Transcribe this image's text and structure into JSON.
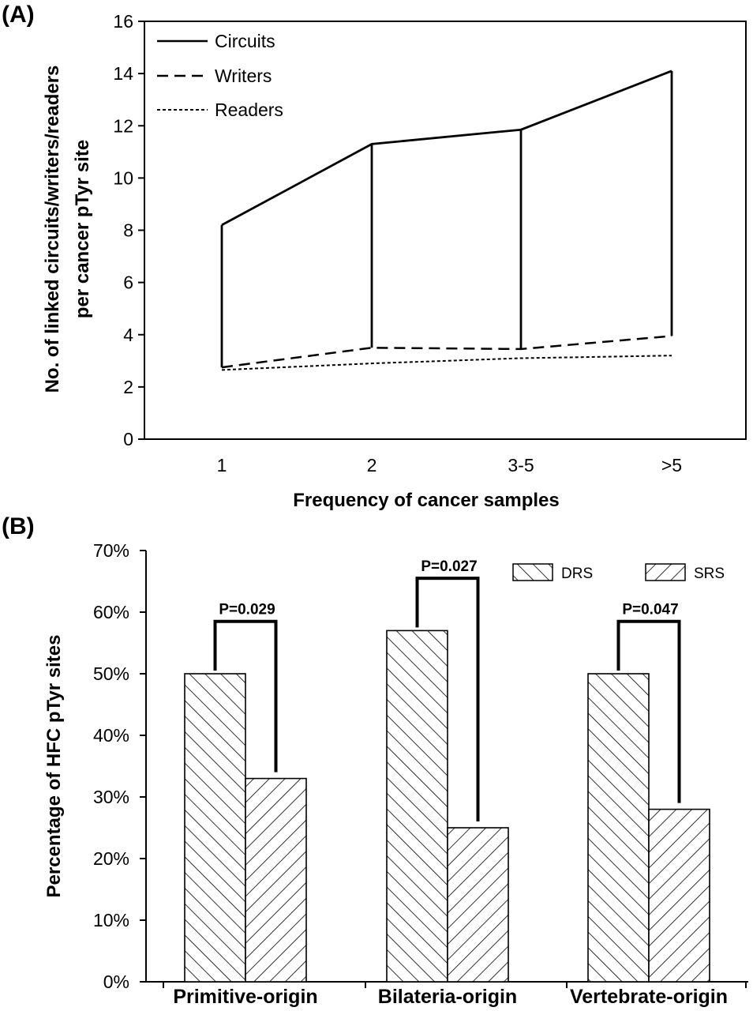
{
  "panel_a": {
    "label": "(A)",
    "legend": [
      "Circuits",
      "Writers",
      "Readers"
    ]
  },
  "panel_b": {
    "label": "(B)",
    "legend": [
      "DRS",
      "SRS"
    ],
    "pvalues": [
      "P=0.029",
      "P=0.027",
      "P=0.047"
    ]
  },
  "chart_data": [
    {
      "type": "line",
      "title": "",
      "xlabel": "Frequency of cancer samples",
      "ylabel_lines": [
        "No. of linked circuits/writers/readers",
        "per cancer pTyr site"
      ],
      "categories": [
        "1",
        "2",
        "3-5",
        ">5"
      ],
      "ylim": [
        0,
        16
      ],
      "yticks": [
        "0",
        "2",
        "4",
        "6",
        "8",
        "10",
        "12",
        "14",
        "16"
      ],
      "grid": false,
      "legend_position": "top-left",
      "series": [
        {
          "name": "Circuits",
          "style": "solid",
          "values": [
            8.2,
            11.3,
            11.85,
            14.1
          ]
        },
        {
          "name": "Writers",
          "style": "dashed",
          "values": [
            2.75,
            3.5,
            3.45,
            3.95
          ]
        },
        {
          "name": "Readers",
          "style": "dotted",
          "values": [
            2.65,
            2.9,
            3.1,
            3.2
          ]
        }
      ]
    },
    {
      "type": "bar",
      "title": "",
      "xlabel": "",
      "ylabel": "Percentage of HFC pTyr sites",
      "categories": [
        "Primitive-origin",
        "Bilateria-origin",
        "Vertebrate-origin"
      ],
      "ylim": [
        0,
        70
      ],
      "yticks": [
        "0%",
        "10%",
        "20%",
        "30%",
        "40%",
        "50%",
        "60%",
        "70%"
      ],
      "grid": false,
      "legend_position": "top-right",
      "series": [
        {
          "name": "DRS",
          "pattern": "backslash-hatch",
          "values": [
            50,
            57,
            50
          ]
        },
        {
          "name": "SRS",
          "pattern": "slash-hatch",
          "values": [
            33,
            25,
            28
          ]
        }
      ],
      "annotations": [
        "P=0.029",
        "P=0.027",
        "P=0.047"
      ]
    }
  ]
}
